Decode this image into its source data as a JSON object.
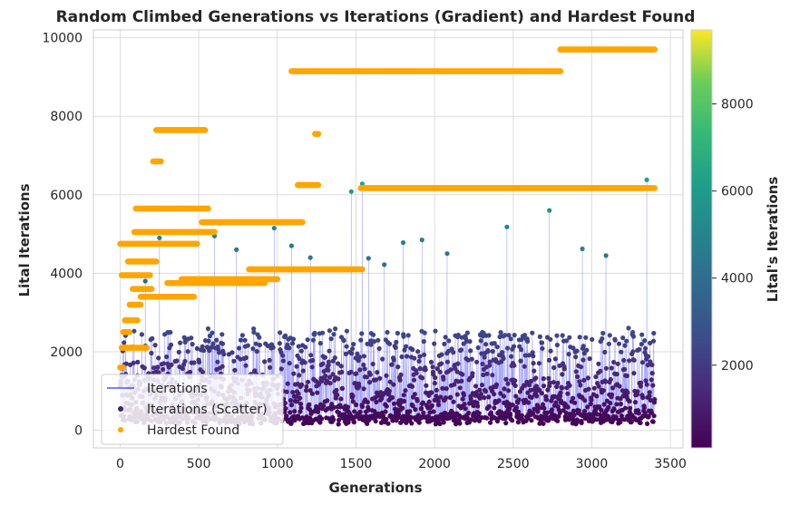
{
  "chart_data": {
    "type": "scatter",
    "title": "Random Climbed Generations vs Iterations (Gradient) and Hardest Found",
    "xlabel": "Generations",
    "ylabel": "Lital Iterations",
    "xlim": [
      -170,
      3580
    ],
    "ylim": [
      -450,
      10200
    ],
    "xticks": [
      0,
      500,
      1000,
      1500,
      2000,
      2500,
      3000,
      3500
    ],
    "yticks": [
      0,
      2000,
      4000,
      6000,
      8000,
      10000
    ],
    "grid": true,
    "legend": {
      "placement": "lower-left",
      "entries": [
        "Iterations",
        "Iterations (Scatter)",
        "Hardest Found"
      ]
    },
    "colorbar": {
      "label": "Lital's Iterations",
      "colormap": "viridis",
      "range": [
        100,
        9700
      ],
      "ticks": [
        2000,
        4000,
        6000,
        8000
      ]
    },
    "series": [
      {
        "name": "Iterations",
        "kind": "line",
        "color": "#0000ff",
        "x_range": [
          0,
          3400
        ],
        "note_values": "dense line through all iteration values"
      },
      {
        "name": "Iterations (Scatter)",
        "kind": "scatter",
        "colored_by": "value",
        "x_range": [
          0,
          3400
        ],
        "typical_range": [
          150,
          2500
        ],
        "outliers": [
          {
            "x": 160,
            "y": 3800
          },
          {
            "x": 250,
            "y": 4900
          },
          {
            "x": 600,
            "y": 4950
          },
          {
            "x": 740,
            "y": 4600
          },
          {
            "x": 980,
            "y": 5150
          },
          {
            "x": 1090,
            "y": 4700
          },
          {
            "x": 1210,
            "y": 4400
          },
          {
            "x": 1470,
            "y": 6080
          },
          {
            "x": 1540,
            "y": 6280
          },
          {
            "x": 1580,
            "y": 4380
          },
          {
            "x": 1680,
            "y": 4220
          },
          {
            "x": 1800,
            "y": 4780
          },
          {
            "x": 1920,
            "y": 4850
          },
          {
            "x": 2080,
            "y": 4500
          },
          {
            "x": 2460,
            "y": 5180
          },
          {
            "x": 2730,
            "y": 5600
          },
          {
            "x": 2940,
            "y": 4620
          },
          {
            "x": 3090,
            "y": 4450
          },
          {
            "x": 3350,
            "y": 6380
          }
        ]
      },
      {
        "name": "Hardest Found",
        "kind": "scatter",
        "color": "#ffa500",
        "steps": [
          {
            "x_start": 0,
            "x_end": 20,
            "y": 1600
          },
          {
            "x_start": 10,
            "x_end": 40,
            "y": 2100
          },
          {
            "x_start": 20,
            "x_end": 170,
            "y": 2100
          },
          {
            "x_start": 20,
            "x_end": 60,
            "y": 2500
          },
          {
            "x_start": 30,
            "x_end": 110,
            "y": 2800
          },
          {
            "x_start": 60,
            "x_end": 130,
            "y": 3200
          },
          {
            "x_start": 80,
            "x_end": 200,
            "y": 3600
          },
          {
            "x_start": 10,
            "x_end": 190,
            "y": 3950
          },
          {
            "x_start": 50,
            "x_end": 230,
            "y": 4300
          },
          {
            "x_start": 0,
            "x_end": 490,
            "y": 4750
          },
          {
            "x_start": 90,
            "x_end": 600,
            "y": 5050
          },
          {
            "x_start": 100,
            "x_end": 560,
            "y": 5650
          },
          {
            "x_start": 210,
            "x_end": 260,
            "y": 6850
          },
          {
            "x_start": 230,
            "x_end": 540,
            "y": 7650
          },
          {
            "x_start": 130,
            "x_end": 470,
            "y": 3400
          },
          {
            "x_start": 300,
            "x_end": 920,
            "y": 3750
          },
          {
            "x_start": 390,
            "x_end": 1000,
            "y": 3850
          },
          {
            "x_start": 820,
            "x_end": 1540,
            "y": 4100
          },
          {
            "x_start": 520,
            "x_end": 1160,
            "y": 5300
          },
          {
            "x_start": 1090,
            "x_end": 2800,
            "y": 9150
          },
          {
            "x_start": 1130,
            "x_end": 1260,
            "y": 6250
          },
          {
            "x_start": 1240,
            "x_end": 1260,
            "y": 7550
          },
          {
            "x_start": 1530,
            "x_end": 3400,
            "y": 6170
          },
          {
            "x_start": 2800,
            "x_end": 3400,
            "y": 9700
          }
        ]
      }
    ]
  }
}
